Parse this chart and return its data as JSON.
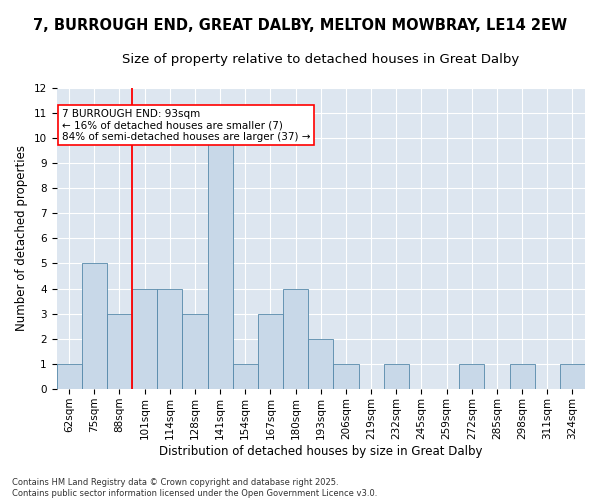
{
  "title_line1": "7, BURROUGH END, GREAT DALBY, MELTON MOWBRAY, LE14 2EW",
  "title_line2": "Size of property relative to detached houses in Great Dalby",
  "xlabel": "Distribution of detached houses by size in Great Dalby",
  "ylabel": "Number of detached properties",
  "categories": [
    "62sqm",
    "75sqm",
    "88sqm",
    "101sqm",
    "114sqm",
    "128sqm",
    "141sqm",
    "154sqm",
    "167sqm",
    "180sqm",
    "193sqm",
    "206sqm",
    "219sqm",
    "232sqm",
    "245sqm",
    "259sqm",
    "272sqm",
    "285sqm",
    "298sqm",
    "311sqm",
    "324sqm"
  ],
  "values": [
    1,
    5,
    3,
    4,
    4,
    3,
    10,
    1,
    3,
    4,
    2,
    1,
    0,
    1,
    0,
    0,
    1,
    0,
    1,
    0,
    1
  ],
  "bar_color": "#c8d8e8",
  "bar_edge_color": "#5588aa",
  "red_line_x": 2.5,
  "annotation_text": "7 BURROUGH END: 93sqm\n← 16% of detached houses are smaller (7)\n84% of semi-detached houses are larger (37) →",
  "annotation_box_color": "white",
  "annotation_box_edge_color": "red",
  "ylim": [
    0,
    12
  ],
  "yticks": [
    0,
    1,
    2,
    3,
    4,
    5,
    6,
    7,
    8,
    9,
    10,
    11,
    12
  ],
  "bg_color": "#dde6f0",
  "footer_text": "Contains HM Land Registry data © Crown copyright and database right 2025.\nContains public sector information licensed under the Open Government Licence v3.0.",
  "title_fontsize": 10.5,
  "subtitle_fontsize": 9.5,
  "axis_label_fontsize": 8.5,
  "tick_fontsize": 7.5,
  "annotation_fontsize": 7.5,
  "footer_fontsize": 6.0
}
